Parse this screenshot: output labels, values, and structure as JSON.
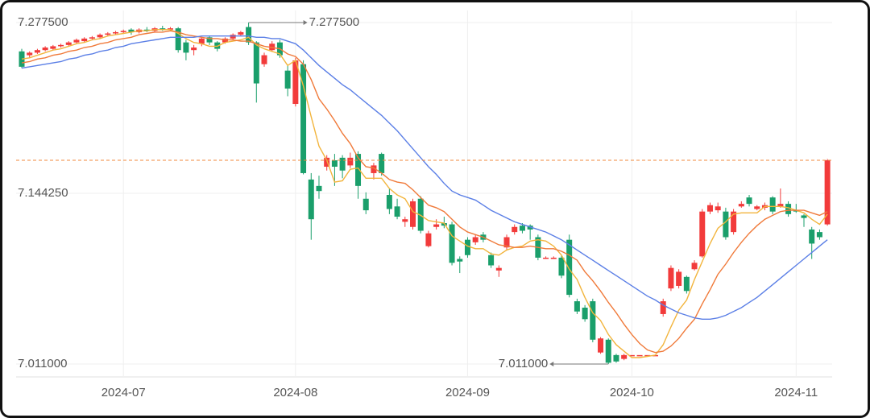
{
  "chart_data": {
    "type": "candlestick",
    "categories": [
      null,
      null,
      null,
      null,
      null,
      null,
      null,
      null,
      null,
      null,
      null,
      null,
      null,
      "2024-07",
      null,
      null,
      null,
      null,
      null,
      null,
      null,
      null,
      null,
      null,
      null,
      null,
      null,
      null,
      null,
      null,
      null,
      null,
      null,
      null,
      null,
      "2024-08",
      null,
      null,
      null,
      null,
      null,
      null,
      null,
      null,
      null,
      null,
      null,
      null,
      null,
      null,
      null,
      null,
      null,
      null,
      null,
      null,
      null,
      "2024-09",
      null,
      null,
      null,
      null,
      null,
      null,
      null,
      null,
      null,
      null,
      null,
      null,
      null,
      null,
      null,
      null,
      null,
      null,
      null,
      null,
      "2024-10",
      null,
      null,
      null,
      null,
      null,
      null,
      null,
      null,
      null,
      null,
      null,
      null,
      null,
      null,
      null,
      null,
      null,
      null,
      null,
      null,
      "2024-11",
      null,
      null,
      null,
      null
    ],
    "open": [
      7.255,
      7.252,
      7.254,
      7.256,
      7.257,
      7.259,
      7.26,
      7.262,
      7.263,
      7.265,
      7.266,
      7.268,
      7.269,
      7.27,
      7.272,
      7.27,
      7.272,
      7.271,
      7.273,
      7.272,
      7.273,
      7.262,
      7.256,
      7.261,
      7.266,
      7.262,
      7.262,
      7.265,
      7.268,
      7.274,
      7.262,
      7.245,
      7.256,
      7.262,
      7.24,
      7.214,
      7.245,
      7.155,
      7.15,
      7.165,
      7.17,
      7.172,
      7.166,
      7.175,
      7.14,
      7.16,
      7.175,
      7.143,
      7.134,
      7.122,
      7.118,
      7.14,
      7.103,
      7.118,
      7.121,
      7.12,
      7.093,
      7.108,
      7.106,
      7.112,
      7.096,
      7.084,
      7.102,
      7.114,
      7.119,
      7.119,
      7.11,
      7.094,
      7.093,
      7.094,
      7.108,
      7.06,
      7.055,
      7.06,
      7.02,
      7.03,
      7.018,
      7.015,
      7.018,
      7.018,
      7.018,
      7.018,
      7.05,
      7.07,
      7.072,
      7.079,
      7.085,
      7.095,
      7.13,
      7.131,
      7.13,
      7.114,
      7.134,
      7.141,
      7.132,
      7.133,
      7.141,
      7.134,
      7.136,
      7.131,
      7.127,
      7.116,
      7.114,
      7.12
    ],
    "high": [
      7.257,
      7.255,
      7.257,
      7.259,
      7.26,
      7.261,
      7.263,
      7.265,
      7.266,
      7.267,
      7.269,
      7.27,
      7.271,
      7.272,
      7.273,
      7.273,
      7.274,
      7.274,
      7.275,
      7.274,
      7.274,
      7.264,
      7.26,
      7.266,
      7.267,
      7.263,
      7.266,
      7.269,
      7.271,
      7.2775,
      7.263,
      7.254,
      7.263,
      7.264,
      7.244,
      7.25,
      7.248,
      7.16,
      7.158,
      7.174,
      7.175,
      7.174,
      7.176,
      7.177,
      7.145,
      7.168,
      7.176,
      7.148,
      7.14,
      7.126,
      7.14,
      7.142,
      7.115,
      7.124,
      7.126,
      7.122,
      7.095,
      7.11,
      7.112,
      7.114,
      7.098,
      7.088,
      7.112,
      7.12,
      7.121,
      7.12,
      7.112,
      7.095,
      7.095,
      7.096,
      7.112,
      7.062,
      7.057,
      7.062,
      7.032,
      7.031,
      7.019,
      7.019,
      7.018,
      7.018,
      7.018,
      7.018,
      7.062,
      7.088,
      7.085,
      7.08,
      7.092,
      7.132,
      7.137,
      7.137,
      7.133,
      7.132,
      7.138,
      7.143,
      7.135,
      7.137,
      7.142,
      7.148,
      7.138,
      7.136,
      7.128,
      7.118,
      7.116,
      7.171
    ],
    "low": [
      7.242,
      7.25,
      7.253,
      7.255,
      7.256,
      7.258,
      7.259,
      7.261,
      7.262,
      7.264,
      7.265,
      7.267,
      7.268,
      7.269,
      7.268,
      7.269,
      7.27,
      7.27,
      7.271,
      7.271,
      7.254,
      7.248,
      7.252,
      7.259,
      7.26,
      7.255,
      7.261,
      7.264,
      7.267,
      7.26,
      7.215,
      7.243,
      7.255,
      7.25,
      7.22,
      7.212,
      7.159,
      7.108,
      7.14,
      7.162,
      7.15,
      7.156,
      7.164,
      7.14,
      7.128,
      7.155,
      7.158,
      7.128,
      7.124,
      7.118,
      7.116,
      7.113,
      7.102,
      7.116,
      7.117,
      7.088,
      7.082,
      7.094,
      7.104,
      7.106,
      7.086,
      7.079,
      7.1,
      7.112,
      7.113,
      7.108,
      7.092,
      7.093,
      7.093,
      7.078,
      7.063,
      7.05,
      7.044,
      7.028,
      7.019,
      7.011,
      7.012,
      7.014,
      7.018,
      7.018,
      7.018,
      7.018,
      7.048,
      7.068,
      7.07,
      7.066,
      7.084,
      7.094,
      7.128,
      7.129,
      7.108,
      7.112,
      7.133,
      7.134,
      7.131,
      7.131,
      7.128,
      7.133,
      7.126,
      7.129,
      7.118,
      7.093,
      7.108,
      7.119
    ],
    "close": [
      7.243,
      7.254,
      7.256,
      7.258,
      7.259,
      7.26,
      7.262,
      7.264,
      7.265,
      7.266,
      7.268,
      7.269,
      7.27,
      7.271,
      7.27,
      7.272,
      7.271,
      7.273,
      7.272,
      7.273,
      7.256,
      7.254,
      7.258,
      7.265,
      7.262,
      7.257,
      7.265,
      7.268,
      7.27,
      7.262,
      7.23,
      7.252,
      7.261,
      7.252,
      7.226,
      7.248,
      7.16,
      7.124,
      7.146,
      7.172,
      7.165,
      7.162,
      7.172,
      7.15,
      7.131,
      7.166,
      7.16,
      7.132,
      7.126,
      7.124,
      7.138,
      7.115,
      7.113,
      7.12,
      7.119,
      7.09,
      7.091,
      7.096,
      7.11,
      7.108,
      7.088,
      7.086,
      7.11,
      7.118,
      7.115,
      7.116,
      7.094,
      7.094,
      7.094,
      7.08,
      7.065,
      7.052,
      7.046,
      7.03,
      7.031,
      7.012,
      7.013,
      7.018,
      7.018,
      7.018,
      7.018,
      7.018,
      7.06,
      7.086,
      7.083,
      7.068,
      7.09,
      7.13,
      7.135,
      7.134,
      7.11,
      7.13,
      7.136,
      7.136,
      7.134,
      7.135,
      7.13,
      7.136,
      7.128,
      7.13,
      7.125,
      7.105,
      7.11,
      7.17
    ],
    "up_color": "#f23b3b",
    "down_color": "#1a9f6b",
    "lines": [
      {
        "color": "#f2b43c",
        "values": [
          7.249,
          7.25,
          7.252,
          7.254,
          7.256,
          7.257,
          7.259,
          7.261,
          7.262,
          7.264,
          7.265,
          7.267,
          7.268,
          7.269,
          7.27,
          7.271,
          7.271,
          7.272,
          7.272,
          7.272,
          7.269,
          7.265,
          7.262,
          7.261,
          7.259,
          7.259,
          7.262,
          7.263,
          7.264,
          7.266,
          7.26,
          7.257,
          7.255,
          7.253,
          7.244,
          7.248,
          7.228,
          7.204,
          7.181,
          7.17,
          7.153,
          7.154,
          7.163,
          7.164,
          7.156,
          7.156,
          7.156,
          7.148,
          7.143,
          7.14,
          7.13,
          7.127,
          7.123,
          7.122,
          7.121,
          7.111,
          7.107,
          7.103,
          7.101,
          7.101,
          7.097,
          7.096,
          7.1,
          7.102,
          7.103,
          7.107,
          7.108,
          7.107,
          7.103,
          7.096,
          7.085,
          7.077,
          7.063,
          7.051,
          7.045,
          7.034,
          7.026,
          7.021,
          7.016,
          7.016,
          7.017,
          7.018,
          7.026,
          7.04,
          7.053,
          7.061,
          7.077,
          7.091,
          7.105,
          7.117,
          7.122,
          7.128,
          7.129,
          7.129,
          7.129,
          7.134,
          7.134,
          7.134,
          7.133,
          7.131,
          7.129,
          7.124,
          7.12,
          7.128
        ]
      },
      {
        "color": "#f07a3a",
        "values": [
          7.246,
          7.247,
          7.249,
          7.25,
          7.252,
          7.253,
          7.255,
          7.256,
          7.258,
          7.259,
          7.261,
          7.262,
          7.264,
          7.265,
          7.266,
          7.268,
          7.269,
          7.27,
          7.27,
          7.271,
          7.27,
          7.268,
          7.267,
          7.266,
          7.265,
          7.265,
          7.264,
          7.264,
          7.263,
          7.263,
          7.261,
          7.259,
          7.258,
          7.257,
          7.253,
          7.251,
          7.245,
          7.233,
          7.218,
          7.21,
          7.201,
          7.191,
          7.183,
          7.172,
          7.165,
          7.164,
          7.16,
          7.155,
          7.153,
          7.152,
          7.147,
          7.141,
          7.135,
          7.133,
          7.13,
          7.124,
          7.118,
          7.114,
          7.112,
          7.11,
          7.107,
          7.104,
          7.103,
          7.102,
          7.102,
          7.103,
          7.102,
          7.101,
          7.101,
          7.099,
          7.096,
          7.092,
          7.083,
          7.076,
          7.068,
          7.059,
          7.051,
          7.042,
          7.034,
          7.027,
          7.022,
          7.02,
          7.021,
          7.025,
          7.031,
          7.039,
          7.046,
          7.058,
          7.069,
          7.081,
          7.089,
          7.098,
          7.106,
          7.113,
          7.119,
          7.124,
          7.127,
          7.13,
          7.131,
          7.131,
          7.131,
          7.129,
          7.127,
          7.13
        ]
      },
      {
        "color": "#5b7fe6",
        "values": [
          7.242,
          7.243,
          7.244,
          7.245,
          7.246,
          7.247,
          7.249,
          7.25,
          7.252,
          7.253,
          7.255,
          7.256,
          7.258,
          7.259,
          7.261,
          7.262,
          7.263,
          7.264,
          7.265,
          7.266,
          7.266,
          7.266,
          7.266,
          7.267,
          7.267,
          7.267,
          7.267,
          7.267,
          7.267,
          7.267,
          7.266,
          7.266,
          7.265,
          7.265,
          7.263,
          7.261,
          7.256,
          7.25,
          7.244,
          7.239,
          7.234,
          7.229,
          7.225,
          7.22,
          7.215,
          7.21,
          7.205,
          7.199,
          7.193,
          7.186,
          7.179,
          7.172,
          7.165,
          7.159,
          7.152,
          7.146,
          7.143,
          7.141,
          7.139,
          7.135,
          7.131,
          7.128,
          7.125,
          7.122,
          7.12,
          7.118,
          7.116,
          7.114,
          7.111,
          7.108,
          7.104,
          7.1,
          7.096,
          7.092,
          7.088,
          7.084,
          7.08,
          7.076,
          7.072,
          7.068,
          7.064,
          7.061,
          7.057,
          7.054,
          7.051,
          7.049,
          7.047,
          7.046,
          7.046,
          7.047,
          7.049,
          7.052,
          7.055,
          7.059,
          7.063,
          7.068,
          7.073,
          7.078,
          7.083,
          7.088,
          7.093,
          7.098,
          7.103,
          7.108
        ]
      }
    ],
    "ylim": [
      7.011,
      7.2775
    ],
    "yticks": [
      {
        "value": 7.011,
        "label": "7.011000"
      },
      {
        "value": 7.14425,
        "label": "7.144250"
      },
      {
        "value": 7.2775,
        "label": "7.277500"
      }
    ],
    "annotations": [
      {
        "label": "7.277500",
        "value": 7.2775,
        "kind": "max"
      },
      {
        "label": "7.011000",
        "value": 7.011,
        "kind": "min"
      }
    ],
    "last_price_line_color": "#f08a3c",
    "grid": true
  }
}
